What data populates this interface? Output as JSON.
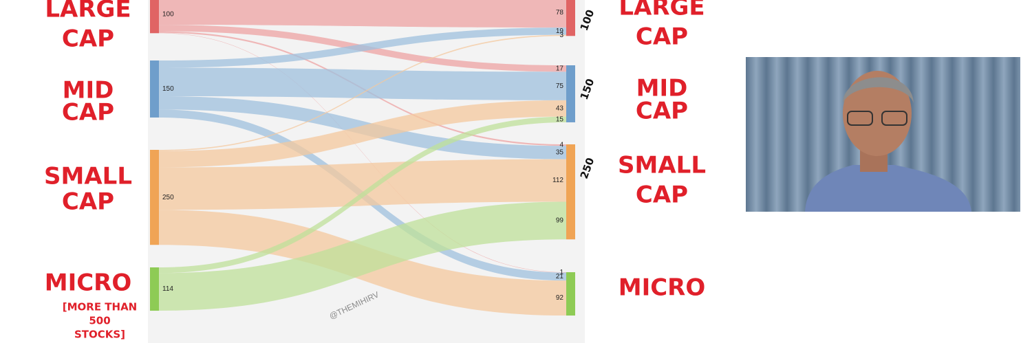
{
  "chart_data": {
    "type": "sankey",
    "watermark": "@THEMIHIRV",
    "sources": [
      {
        "label_lines": [
          "LARGE",
          "CAP"
        ],
        "value": 100,
        "node_color": "#e06464",
        "link_color": "#eda3a3",
        "flows": [
          78,
          17,
          4,
          1
        ]
      },
      {
        "label_lines": [
          "MID",
          "CAP"
        ],
        "value": 150,
        "node_color": "#6f9ecb",
        "link_color": "#9fc0de",
        "flows": [
          19,
          75,
          35,
          21
        ]
      },
      {
        "label_lines": [
          "SMALL",
          "CAP"
        ],
        "value": 250,
        "node_color": "#f0a455",
        "link_color": "#f4c89e",
        "flows": [
          3,
          43,
          112,
          92
        ]
      },
      {
        "label_lines": [
          "MICRO"
        ],
        "note_lines": [
          "[MORE THAN",
          "500",
          "STOCKS]"
        ],
        "value": 114,
        "node_color": "#8ecb55",
        "link_color": "#bfe09a",
        "flows": [
          null,
          15,
          99,
          null
        ]
      }
    ],
    "targets": [
      {
        "label_lines": [
          "LARGE",
          "CAP"
        ],
        "annotation": 100,
        "node_color": "#e06464"
      },
      {
        "label_lines": [
          "MID",
          "CAP"
        ],
        "annotation": 150,
        "node_color": "#6f9ecb"
      },
      {
        "label_lines": [
          "SMALL",
          "CAP"
        ],
        "annotation": 250,
        "node_color": "#f0a455"
      },
      {
        "label_lines": [
          "MICRO"
        ],
        "node_color": "#8ecb55"
      }
    ]
  }
}
